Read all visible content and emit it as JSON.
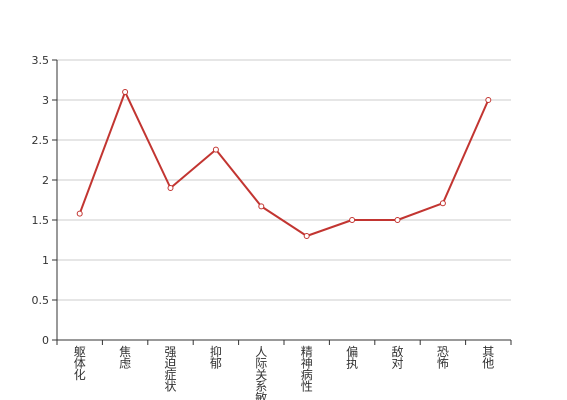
{
  "chart_data": {
    "type": "line",
    "categories": [
      "躯体化",
      "焦虑",
      "强迫症状",
      "抑郁",
      "人际关系敏感",
      "精神病性",
      "偏执",
      "敌对",
      "恐怖",
      "其他"
    ],
    "values": [
      1.58,
      3.1,
      1.9,
      2.38,
      1.67,
      1.3,
      1.5,
      1.5,
      1.71,
      3.0
    ],
    "ylim": [
      0,
      3.5
    ],
    "yticks": [
      "0",
      "0.5",
      "1",
      "1.5",
      "2",
      "2.5",
      "3",
      "3.5"
    ],
    "grid": true,
    "title": "",
    "xlabel": "",
    "ylabel": "",
    "line_color": "#c23531"
  }
}
